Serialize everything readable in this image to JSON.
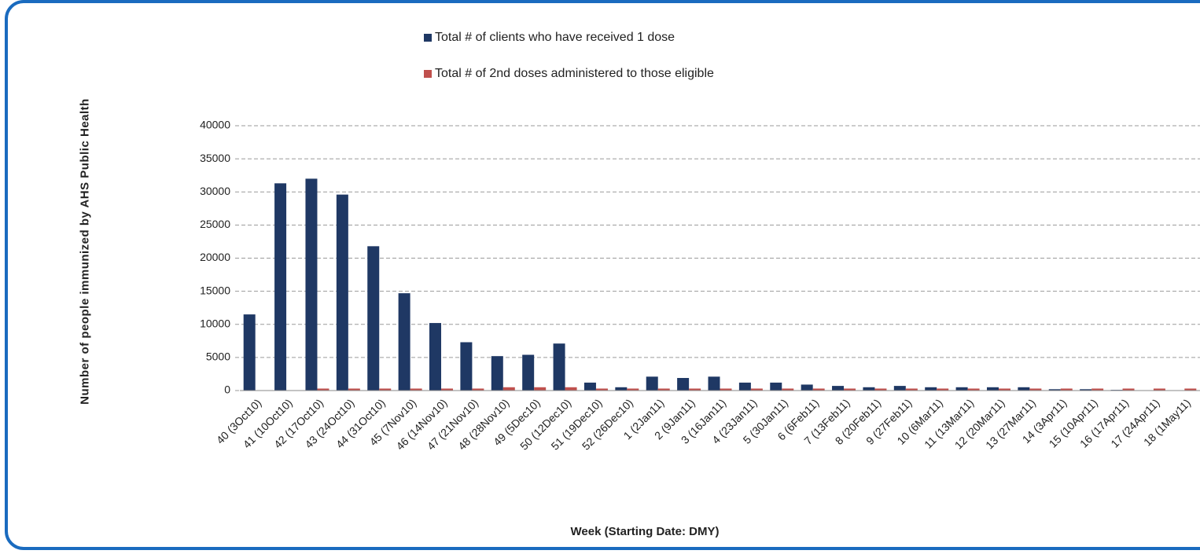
{
  "chart_data": {
    "type": "bar",
    "y_label": "Number of people immunized by AHS Public Health",
    "x_label": "Week (Starting Date: DMY)",
    "categories": [
      "40 (3Oct10)",
      "41 (10Oct10)",
      "42 (17Oct10)",
      "43 (24Oct10)",
      "44 (31Oct10)",
      "45 (7Nov10)",
      "46 (14Nov10)",
      "47 (21Nov10)",
      "48 (28Nov10)",
      "49 (5Dec10)",
      "50 (12Dec10)",
      "51 (19Dec10)",
      "52 (26Dec10)",
      "1 (2Jan11)",
      "2 (9Jan11)",
      "3 (16Jan11)",
      "4 (23Jan11)",
      "5 (30Jan11)",
      "6 (6Feb11)",
      "7 (13Feb11)",
      "8 (20Feb11)",
      "9 (27Feb11)",
      "10 (6Mar11)",
      "11 (13Mar11)",
      "12 (20Mar11)",
      "13 (27Mar11)",
      "14 (3Apr11)",
      "15 (10Apr11)",
      "16 (17Apr11)",
      "17 (24Apr11)",
      "18 (1May11)"
    ],
    "series": [
      {
        "name": "Total # of clients who have received 1 dose",
        "color": "#1f3864",
        "values": [
          11500,
          31300,
          32000,
          29600,
          21800,
          14700,
          10200,
          7300,
          5200,
          5400,
          7100,
          1200,
          500,
          2100,
          1900,
          2100,
          1200,
          1200,
          900,
          700,
          500,
          700,
          500,
          500,
          500,
          500,
          200,
          200,
          100,
          0,
          0
        ]
      },
      {
        "name": "Total # of 2nd doses administered to those eligible",
        "color": "#c0504d",
        "values": [
          0,
          0,
          300,
          300,
          300,
          300,
          300,
          300,
          500,
          500,
          500,
          300,
          300,
          300,
          300,
          300,
          300,
          300,
          300,
          300,
          300,
          300,
          300,
          300,
          300,
          300,
          300,
          300,
          300,
          300,
          300
        ]
      }
    ],
    "ylim": [
      0,
      40000
    ],
    "yticks": [
      0,
      5000,
      10000,
      15000,
      20000,
      25000,
      30000,
      35000,
      40000
    ],
    "grid": true
  }
}
